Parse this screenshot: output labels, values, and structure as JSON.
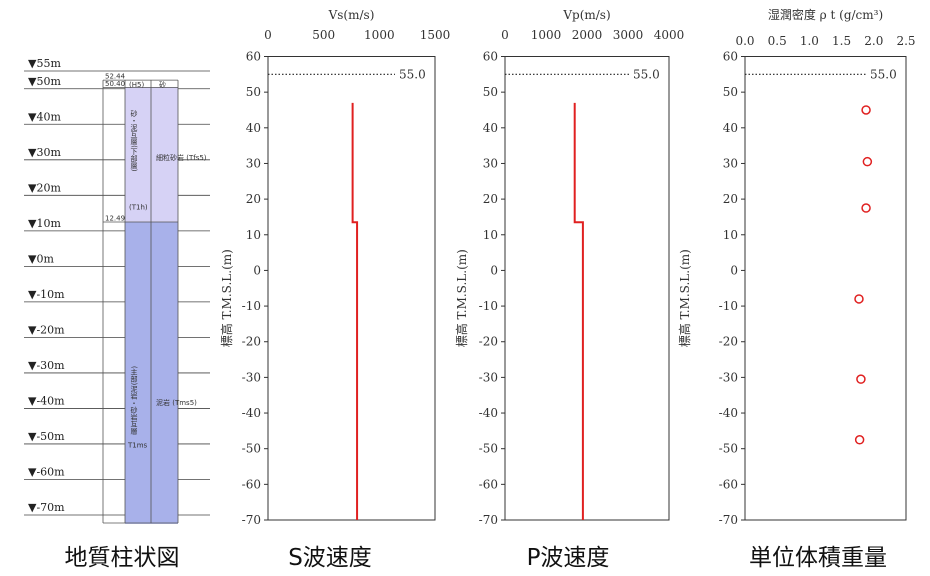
{
  "geologic_column": {
    "title": "地質柱状図",
    "levels": [
      "▼55m",
      "▼50m",
      "▼40m",
      "▼30m",
      "▼20m",
      "▼10m",
      "▼0m",
      "▼-10m",
      "▼-20m",
      "▼-30m",
      "▼-40m",
      "▼-50m",
      "▼-60m",
      "▼-70m"
    ],
    "boundary_labels": [
      "52.44",
      "50.40",
      "12.49"
    ],
    "layers": [
      {
        "top": 52.44,
        "bottom": 50.4,
        "unit": "(H5)",
        "rock": "砂",
        "color": "#ffffff"
      },
      {
        "top": 50.4,
        "bottom": 12.49,
        "unit": "砂・泥互層(下部層)",
        "rock": "細粒砂岩 (Tfs5)",
        "sub": "(T1h)",
        "color": "#d6d2f5"
      },
      {
        "top": 12.49,
        "bottom": -72.5,
        "unit": "(主部)泥岩・砂岩互層",
        "rock": "泥岩 (Tms5)",
        "sub": "T1ms",
        "color": "#a8b1ea"
      }
    ],
    "colors": {
      "upper": "#d6d2f5",
      "lower": "#a8b1ea",
      "line": "#333333"
    }
  },
  "chart_data": [
    {
      "type": "line",
      "caption": "S波速度",
      "title": "Vs(m/s)",
      "ylabel": "",
      "xlim": [
        0,
        1500
      ],
      "xticks": [
        0,
        500,
        1000,
        1500
      ],
      "ylim": [
        -70,
        60
      ],
      "yticks": [
        60,
        50,
        40,
        30,
        20,
        10,
        0,
        -10,
        -20,
        -30,
        -40,
        -50,
        -60,
        -70
      ],
      "reference_line": {
        "y": 55.0,
        "label": "55.0"
      },
      "series": [
        {
          "color": "#e02020",
          "points": [
            [
              760,
              47
            ],
            [
              760,
              13.5
            ],
            [
              800,
              13.5
            ],
            [
              800,
              -70
            ]
          ]
        }
      ]
    },
    {
      "type": "line",
      "caption": "P波速度",
      "title": "Vp(m/s)",
      "ylabel": "標高 T.M.S.L.(m)",
      "xlim": [
        0,
        4000
      ],
      "xticks": [
        0,
        1000,
        2000,
        3000,
        4000
      ],
      "ylim": [
        -70,
        60
      ],
      "yticks": [
        60,
        50,
        40,
        30,
        20,
        10,
        0,
        -10,
        -20,
        -30,
        -40,
        -50,
        -60,
        -70
      ],
      "reference_line": {
        "y": 55.0,
        "label": "55.0"
      },
      "series": [
        {
          "color": "#e02020",
          "points": [
            [
              1700,
              47
            ],
            [
              1700,
              13.5
            ],
            [
              1900,
              13.5
            ],
            [
              1900,
              -70
            ]
          ]
        }
      ]
    },
    {
      "type": "scatter",
      "caption": "単位体積重量",
      "title": "湿潤密度 ρ t (g/cm³)",
      "ylabel": "標高 T.M.S.L.(m)",
      "xlim": [
        0.0,
        2.5
      ],
      "xticks": [
        "0.0",
        "0.5",
        "1.0",
        "1.5",
        "2.0",
        "2.5"
      ],
      "ylim": [
        -70,
        60
      ],
      "yticks": [
        60,
        50,
        40,
        30,
        20,
        10,
        0,
        -10,
        -20,
        -30,
        -40,
        -50,
        -60,
        -70
      ],
      "reference_line": {
        "y": 55.0,
        "label": "55.0"
      },
      "series": [
        {
          "color": "#e02020",
          "marker": "open-circle",
          "points": [
            [
              1.88,
              45
            ],
            [
              1.9,
              30.5
            ],
            [
              1.88,
              17.5
            ],
            [
              1.77,
              -8
            ],
            [
              1.8,
              -30.5
            ],
            [
              1.78,
              -47.5
            ]
          ]
        }
      ]
    }
  ],
  "axis_label": "標高 T.M.S.L.(m)"
}
